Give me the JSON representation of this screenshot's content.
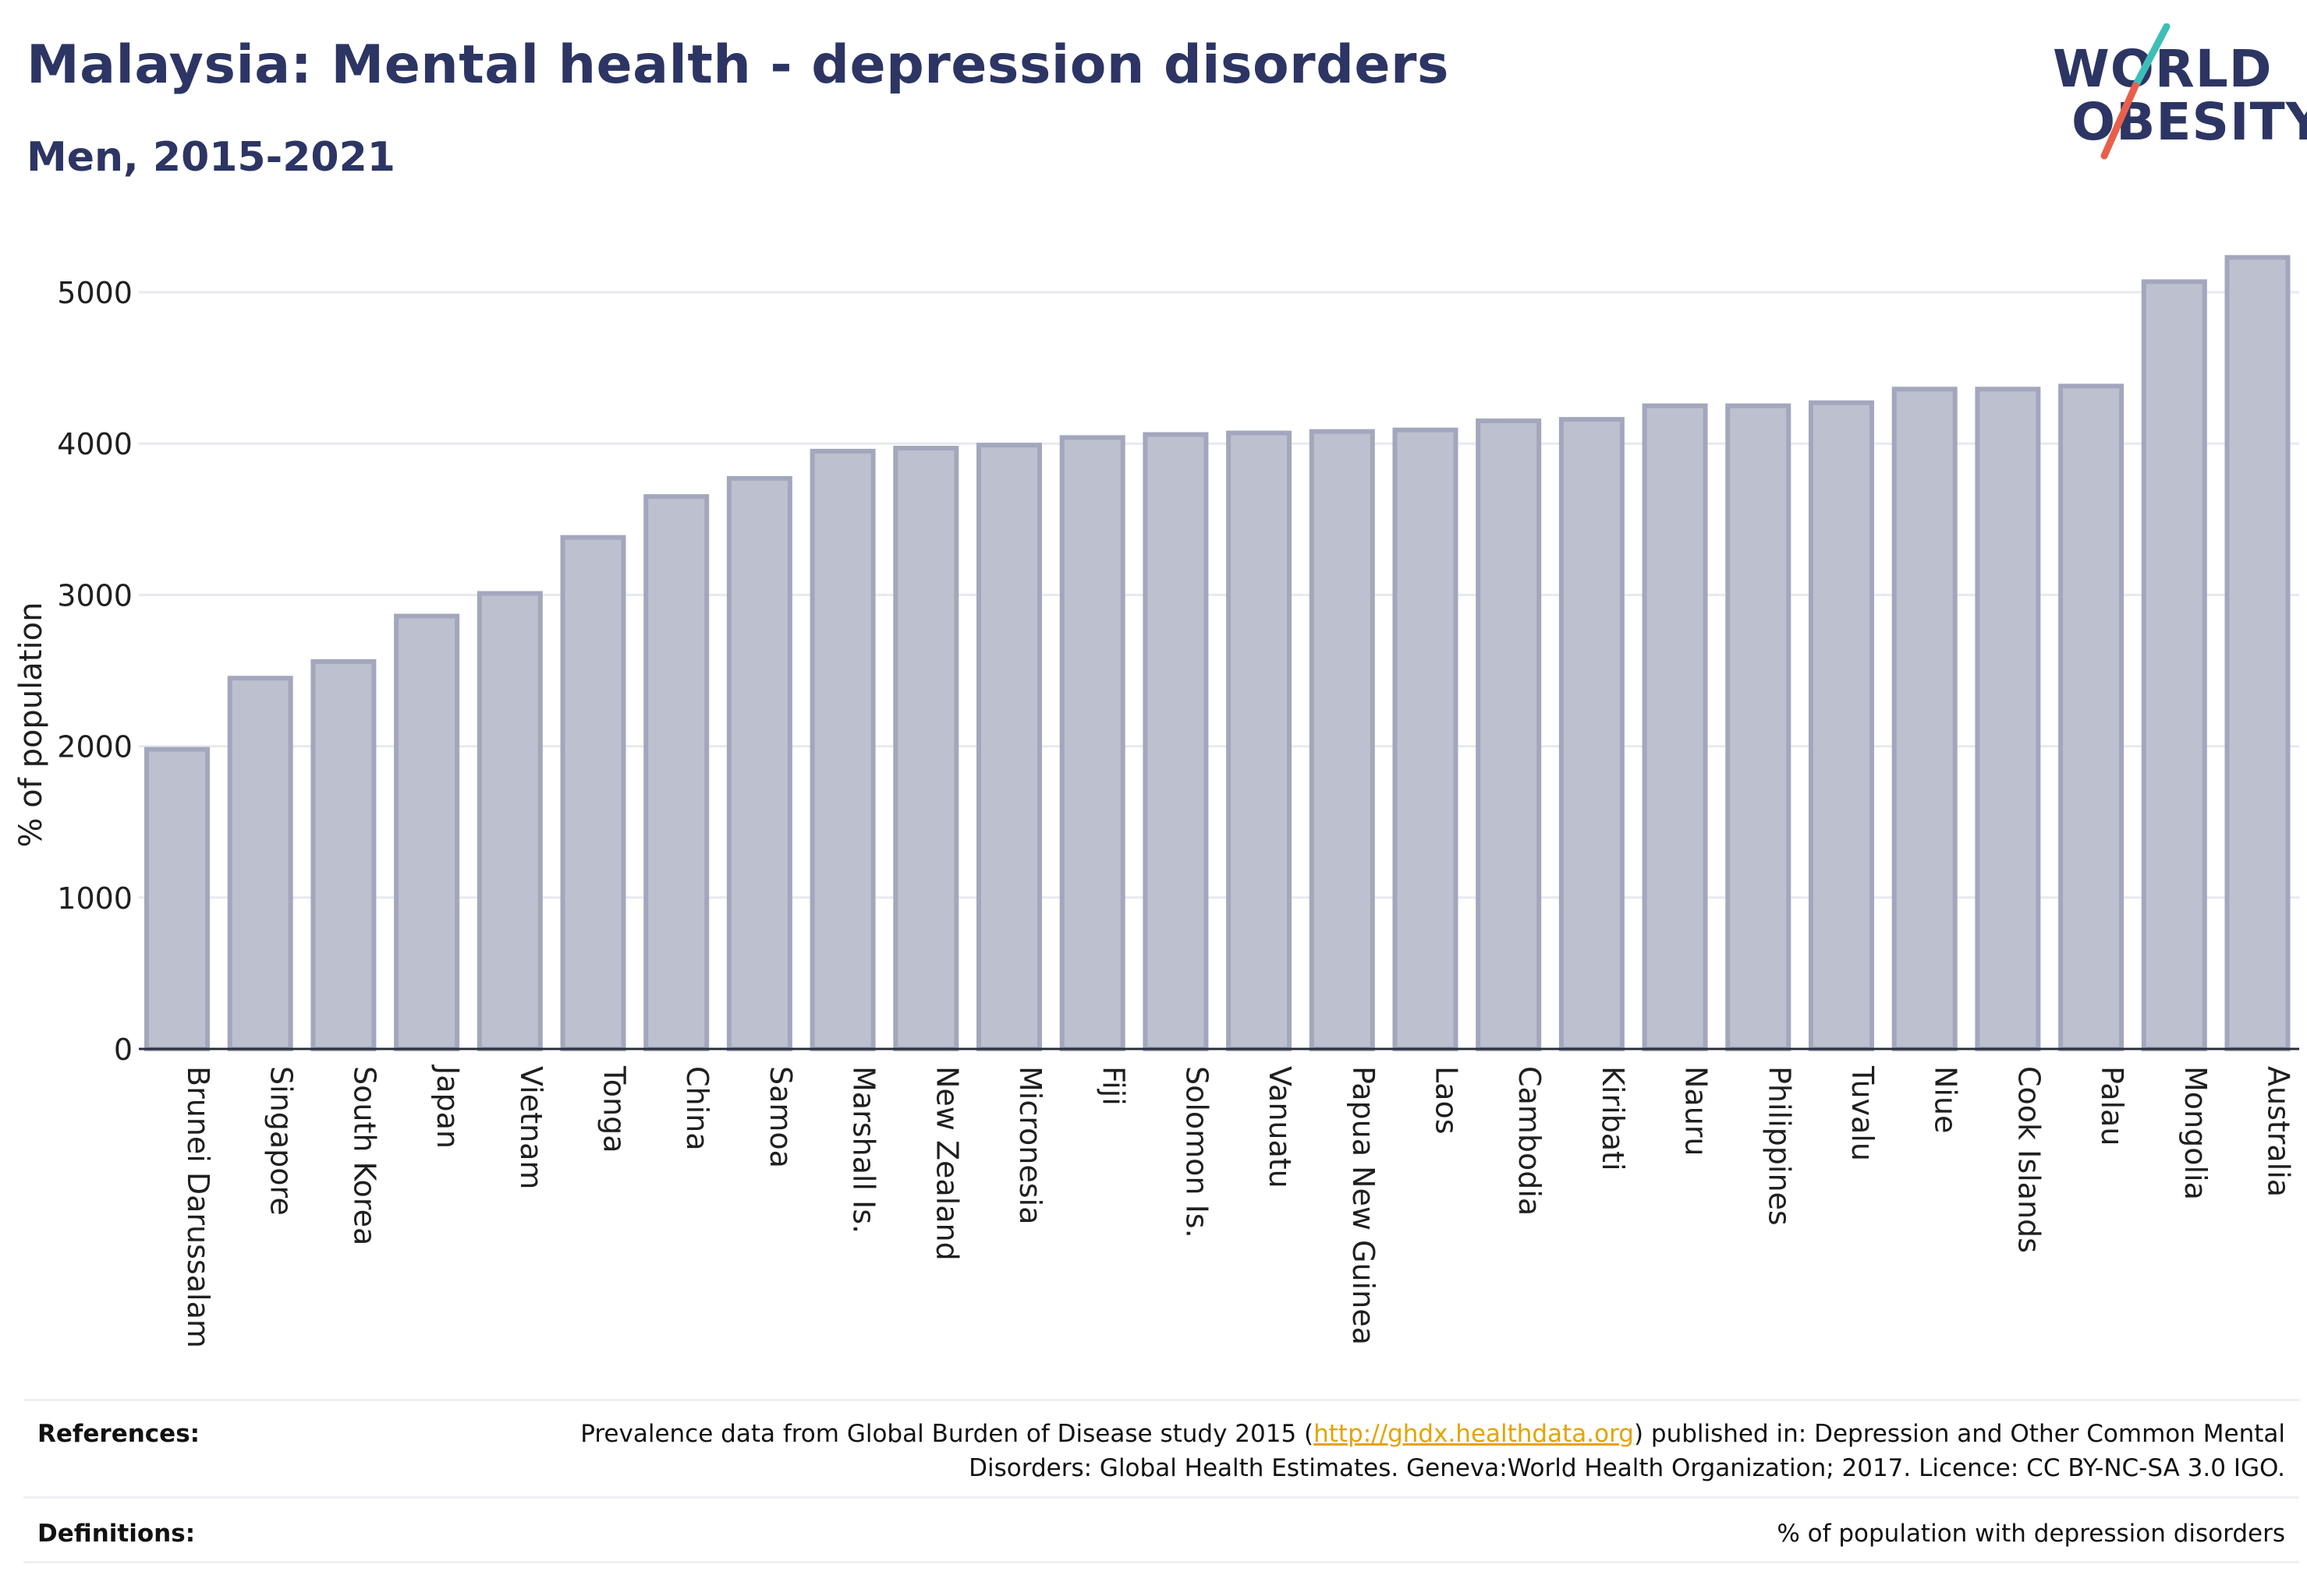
{
  "header": {
    "title": "Malaysia: Mental health - depression disorders",
    "subtitle": "Men, 2015-2021"
  },
  "logo": {
    "line1": "WORLD",
    "line2": "OBESITY",
    "accent_teal": "#3dbfb8",
    "accent_coral": "#e8604c"
  },
  "chart_data": {
    "type": "bar",
    "title": "Malaysia: Mental health - depression disorders",
    "subtitle": "Men, 2015-2021",
    "ylabel": "% of population",
    "xlabel": "",
    "ylim": [
      0,
      5350
    ],
    "yticks": [
      0,
      1000,
      2000,
      3000,
      4000,
      5000
    ],
    "grid": true,
    "bar_color": "#bdc0ce",
    "bar_edge_color": "#a3a7bd",
    "categories": [
      "Brunei Darussalam",
      "Singapore",
      "South Korea",
      "Japan",
      "Vietnam",
      "Tonga",
      "China",
      "Samoa",
      "Marshall Is.",
      "New Zealand",
      "Micronesia",
      "Fiji",
      "Solomon Is.",
      "Vanuatu",
      "Papua New Guinea",
      "Laos",
      "Cambodia",
      "Kiribati",
      "Nauru",
      "Philippines",
      "Tuvalu",
      "Niue",
      "Cook Islands",
      "Palau",
      "Mongolia",
      "Australia"
    ],
    "values": [
      1980,
      2450,
      2560,
      2860,
      3010,
      3380,
      3650,
      3770,
      3950,
      3970,
      3990,
      4040,
      4060,
      4070,
      4080,
      4090,
      4150,
      4160,
      4250,
      4250,
      4270,
      4360,
      4360,
      4380,
      5070,
      5230
    ]
  },
  "footer": {
    "references_label": "References:",
    "references_text_1": "Prevalence data from Global Burden of Disease study 2015 (",
    "references_link": "http://ghdx.healthdata.org",
    "references_text_2": ") published in: Depression and Other Common Mental Disorders: Global Health Estimates. Geneva:World Health Organization; 2017. Licence: CC BY-NC-SA 3.0 IGO.",
    "definitions_label": "Definitions:",
    "definitions_text": "% of population with depression disorders"
  }
}
